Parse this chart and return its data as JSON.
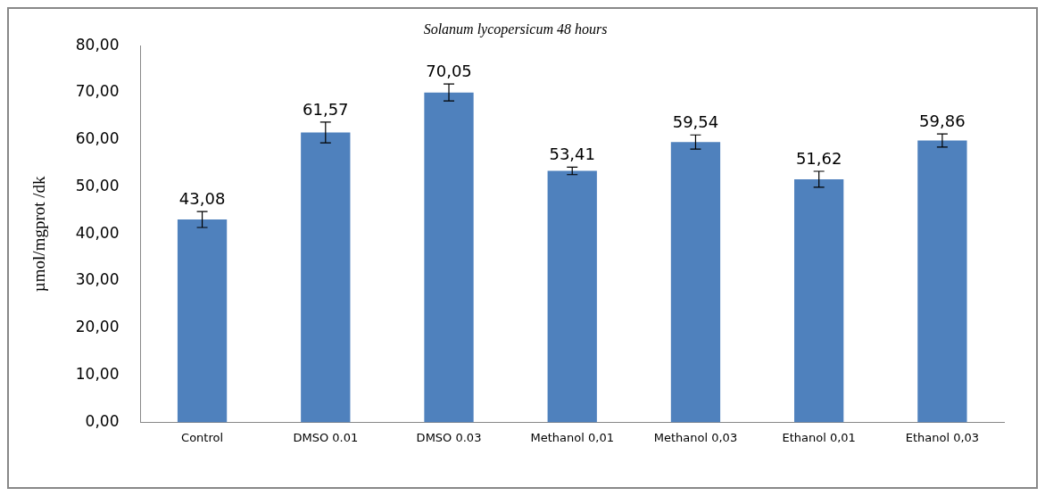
{
  "chart_data": {
    "type": "bar",
    "title": "Solanum lycopersicum 48 hours",
    "ylabel": "µmol/mgprot /dk",
    "categories": [
      "Control",
      "DMSO 0.01",
      "DMSO 0.03",
      "Methanol 0,01",
      "Methanol 0,03",
      "Ethanol 0,01",
      "Ethanol 0,03"
    ],
    "values": [
      43.08,
      61.57,
      70.05,
      53.41,
      59.54,
      51.62,
      59.86
    ],
    "value_labels": [
      "43,08",
      "61,57",
      "70,05",
      "53,41",
      "59,54",
      "51,62",
      "59,86"
    ],
    "errors": [
      1.7,
      2.2,
      1.8,
      0.8,
      1.5,
      1.7,
      1.4
    ],
    "color": "#4f81bd",
    "ylim": [
      0,
      80
    ],
    "yticks": [
      {
        "value": 0,
        "label": "0,00"
      },
      {
        "value": 10,
        "label": "10,00"
      },
      {
        "value": 20,
        "label": "20,00"
      },
      {
        "value": 30,
        "label": "30,00"
      },
      {
        "value": 40,
        "label": "40,00"
      },
      {
        "value": 50,
        "label": "50,00"
      },
      {
        "value": 60,
        "label": "60,00"
      },
      {
        "value": 70,
        "label": "70,00"
      },
      {
        "value": 80,
        "label": "80,00"
      }
    ],
    "grid": false,
    "legend": false
  }
}
